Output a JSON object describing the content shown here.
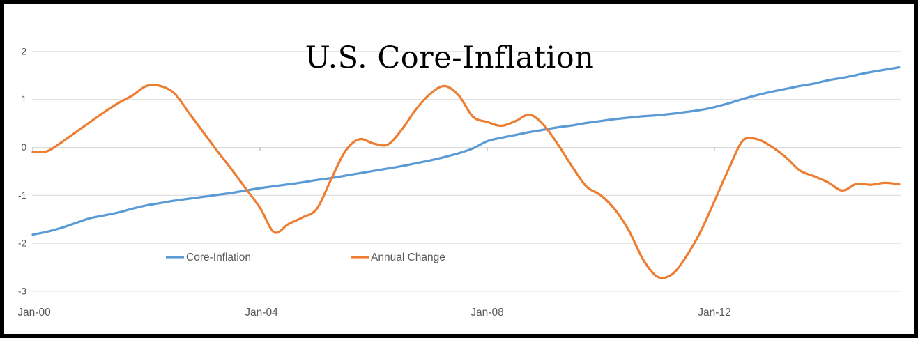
{
  "window": {
    "background": "#ffffff",
    "border_color": "#000000"
  },
  "chart_data": {
    "type": "line",
    "title": "U.S. Core-Inflation",
    "xlabel": "",
    "ylabel": "",
    "x_start": 2000.0,
    "x_step": 0.25,
    "x_end": 2015.25,
    "xlim": [
      2000.0,
      2015.3
    ],
    "ylim": [
      -3,
      2
    ],
    "y_ticks": [
      2,
      1,
      0,
      -1,
      -2,
      -3
    ],
    "x_ticks": [
      2000,
      2004,
      2008,
      2012
    ],
    "x_tick_labels": [
      "Jan-00",
      "Jan-04",
      "Jan-08",
      "Jan-12"
    ],
    "grid": "horizontal-only",
    "legend_position": "bottom-inside",
    "colors": {
      "grid": "#D9D9D9",
      "tick": "#A6A6A6",
      "axis_label": "#595959",
      "title": "#000000"
    },
    "series": [
      {
        "name": "Core-Inflation",
        "color": "#5B9BD5",
        "values": [
          -1.82,
          -1.76,
          -1.68,
          -1.58,
          -1.48,
          -1.42,
          -1.36,
          -1.28,
          -1.21,
          -1.16,
          -1.11,
          -1.07,
          -1.03,
          -0.99,
          -0.95,
          -0.9,
          -0.85,
          -0.81,
          -0.77,
          -0.73,
          -0.68,
          -0.64,
          -0.59,
          -0.54,
          -0.49,
          -0.44,
          -0.39,
          -0.33,
          -0.27,
          -0.2,
          -0.12,
          -0.02,
          0.13,
          0.2,
          0.26,
          0.32,
          0.37,
          0.42,
          0.46,
          0.51,
          0.55,
          0.59,
          0.62,
          0.65,
          0.67,
          0.7,
          0.74,
          0.78,
          0.84,
          0.92,
          1.01,
          1.09,
          1.16,
          1.22,
          1.28,
          1.33,
          1.4,
          1.45,
          1.51,
          1.57,
          1.62,
          1.67
        ]
      },
      {
        "name": "Annual Change",
        "color": "#ED7D31",
        "values": [
          -0.1,
          -0.08,
          0.1,
          0.31,
          0.52,
          0.73,
          0.92,
          1.08,
          1.28,
          1.28,
          1.12,
          0.72,
          0.32,
          -0.08,
          -0.46,
          -0.86,
          -1.26,
          -1.77,
          -1.6,
          -1.46,
          -1.28,
          -0.67,
          -0.08,
          0.17,
          0.08,
          0.06,
          0.38,
          0.8,
          1.12,
          1.28,
          1.08,
          0.64,
          0.53,
          0.45,
          0.55,
          0.68,
          0.46,
          0.05,
          -0.41,
          -0.82,
          -1.0,
          -1.3,
          -1.75,
          -2.35,
          -2.7,
          -2.65,
          -2.28,
          -1.77,
          -1.12,
          -0.45,
          0.14,
          0.17,
          0.02,
          -0.2,
          -0.48,
          -0.6,
          -0.73,
          -0.9,
          -0.76,
          -0.78,
          -0.74,
          -0.77
        ]
      }
    ]
  }
}
